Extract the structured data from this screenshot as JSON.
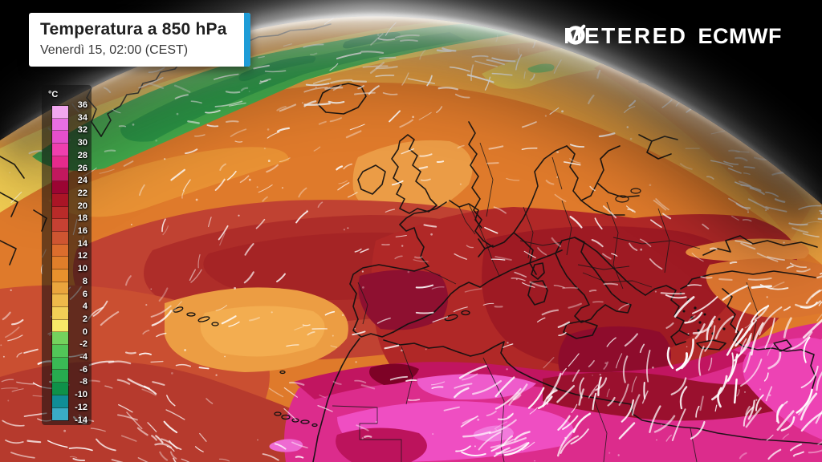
{
  "header": {
    "title": "Temperatura a 850 hPa",
    "subtitle": "Venerdì 15, 02:00 (CEST)",
    "accent_color": "#1E9CD7"
  },
  "brand": {
    "meteored_prefix": "METE",
    "meteored_suffix": "RED",
    "ecmwf_label": "ECMWF",
    "color": "#FFFFFF"
  },
  "legend": {
    "unit": "°C",
    "tick_labels": [
      "36",
      "34",
      "32",
      "30",
      "28",
      "26",
      "24",
      "22",
      "20",
      "18",
      "16",
      "14",
      "12",
      "10",
      "8",
      "6",
      "4",
      "2",
      "0",
      "-2",
      "-4",
      "-6",
      "-8",
      "-10",
      "-12",
      "-14"
    ],
    "cell_colors": [
      "#F2A7EF",
      "#E96FE3",
      "#E44FCB",
      "#EF3FAE",
      "#E52A8C",
      "#C2185E",
      "#9B0533",
      "#AA1526",
      "#B92B29",
      "#C64133",
      "#CE5531",
      "#DB6D2D",
      "#E07E2A",
      "#E8912D",
      "#EAA53D",
      "#EEB94A",
      "#F2CF57",
      "#F8E968",
      "#74D25D",
      "#52C658",
      "#3ABA55",
      "#27AB4F",
      "#0F9149",
      "#108D96",
      "#3AABC5"
    ]
  },
  "map": {
    "background_color": "#000000",
    "wind_color": "#FFFFFF",
    "coastline_color": "#101010",
    "atmosphere_glow_color": "#FFFFFF"
  }
}
